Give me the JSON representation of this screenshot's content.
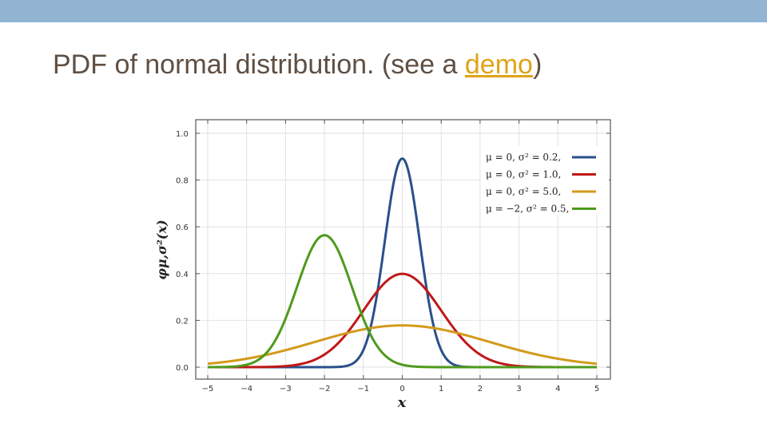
{
  "slide": {
    "title_prefix": "PDF of normal distribution. (see a ",
    "title_link": "demo",
    "title_suffix": ")",
    "colors": {
      "topbar": "#93b5d4",
      "title": "#5f4f43",
      "link": "#e0a317"
    }
  },
  "chart_data": {
    "type": "line",
    "xlabel": "x",
    "ylabel": "φμ,σ²(x)",
    "xlim": [
      -5,
      5
    ],
    "ylim": [
      0,
      1.0
    ],
    "xticks": [
      "−5",
      "−4",
      "−3",
      "−2",
      "−1",
      "0",
      "1",
      "2",
      "3",
      "4",
      "5"
    ],
    "yticks": [
      "0.0",
      "0.2",
      "0.4",
      "0.6",
      "0.8",
      "1.0"
    ],
    "grid": true,
    "legend_position": "top-right",
    "series": [
      {
        "name": "μ = 0, σ² = 0.2,",
        "mu": 0,
        "variance": 0.2,
        "color": "#2a4f8c",
        "peak": 0.892
      },
      {
        "name": "μ = 0, σ² = 1.0,",
        "mu": 0,
        "variance": 1.0,
        "color": "#c01818",
        "peak": 0.399
      },
      {
        "name": "μ = 0, σ² = 5.0,",
        "mu": 0,
        "variance": 5.0,
        "color": "#d39a1a",
        "peak": 0.178
      },
      {
        "name": "μ = −2, σ² = 0.5,",
        "mu": -2,
        "variance": 0.5,
        "color": "#4e9a1c",
        "peak": 0.564
      }
    ]
  }
}
